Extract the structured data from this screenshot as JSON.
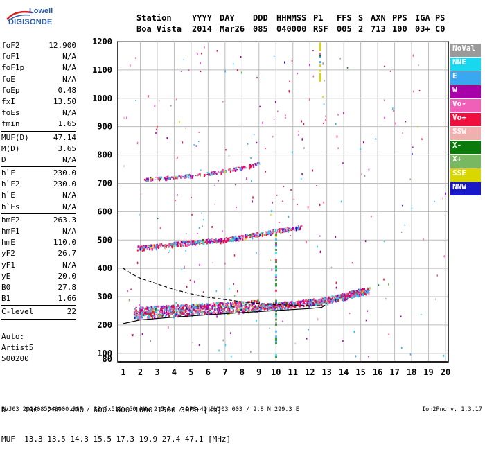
{
  "logo": {
    "org": "Lowell",
    "product": "DIGISONDE"
  },
  "header": {
    "cols": [
      {
        "top": "Station",
        "bottom": "Boa Vista"
      },
      {
        "top": "YYYY",
        "bottom": "2014"
      },
      {
        "top": "DAY",
        "bottom": "Mar26"
      },
      {
        "top": "DDD",
        "bottom": "085"
      },
      {
        "top": "HHMMSS",
        "bottom": "040000"
      },
      {
        "top": "P1",
        "bottom": "RSF"
      },
      {
        "top": "FFS",
        "bottom": "005"
      },
      {
        "top": "S",
        "bottom": "2"
      },
      {
        "top": "AXN",
        "bottom": "713"
      },
      {
        "top": "PPS",
        "bottom": "100"
      },
      {
        "top": "IGA",
        "bottom": "03+"
      },
      {
        "top": "PS",
        "bottom": "C0"
      }
    ]
  },
  "params": [
    {
      "k": "foF2",
      "v": "12.900"
    },
    {
      "k": "foF1",
      "v": "N/A"
    },
    {
      "k": "foF1p",
      "v": "N/A"
    },
    {
      "k": "foE",
      "v": "N/A"
    },
    {
      "k": "foEp",
      "v": "0.48"
    },
    {
      "k": "fxI",
      "v": "13.50"
    },
    {
      "k": "foEs",
      "v": "N/A"
    },
    {
      "k": "fmin",
      "v": "1.65"
    },
    {
      "sep": true
    },
    {
      "k": "MUF(D)",
      "v": "47.14"
    },
    {
      "k": "M(D)",
      "v": "3.65"
    },
    {
      "k": "D",
      "v": "N/A"
    },
    {
      "sep": true
    },
    {
      "k": "h`F",
      "v": "230.0"
    },
    {
      "k": "h`F2",
      "v": "230.0"
    },
    {
      "k": "h`E",
      "v": "N/A"
    },
    {
      "k": "h`Es",
      "v": "N/A"
    },
    {
      "sep": true
    },
    {
      "k": "hmF2",
      "v": "263.3"
    },
    {
      "k": "hmF1",
      "v": "N/A"
    },
    {
      "k": "hmE",
      "v": "110.0"
    },
    {
      "k": "yF2",
      "v": "26.7"
    },
    {
      "k": "yF1",
      "v": "N/A"
    },
    {
      "k": "yE",
      "v": "20.0"
    },
    {
      "k": "B0",
      "v": "27.8"
    },
    {
      "k": "B1",
      "v": "1.66"
    },
    {
      "sep": true
    },
    {
      "k": "C-level",
      "v": "22"
    },
    {
      "sep": true
    }
  ],
  "auto": {
    "line1": "Auto:",
    "line2": "Artist5",
    "line3": "500200"
  },
  "legend": [
    {
      "label": "NoVal",
      "color": "#9a9a9a"
    },
    {
      "label": "NNE",
      "color": "#18d8f0"
    },
    {
      "label": "E",
      "color": "#3aa8f0"
    },
    {
      "label": "W",
      "color": "#a800a8"
    },
    {
      "label": "Vo-",
      "color": "#f060b8"
    },
    {
      "label": "Vo+",
      "color": "#f01040"
    },
    {
      "label": "SSW",
      "color": "#f0b0b0"
    },
    {
      "label": "X-",
      "color": "#0a7a0a"
    },
    {
      "label": "X+",
      "color": "#78b860"
    },
    {
      "label": "SSE",
      "color": "#d8d800"
    },
    {
      "label": "NNW",
      "color": "#1818c8"
    }
  ],
  "bottom": {
    "line1": "D    100  200  400  600  800 1000 1500 3000 [km]",
    "line2": "MUF  13.3 13.5 14.3 15.5 17.3 19.9 27.4 47.1 [MHz]",
    "file_line": "BVJ03_2014085040000.RSF / 384fx512h 50 kHz 2.5 km / DPS-4D BVJ03 003 / 2.8 N 299.3 E",
    "version": "Ion2Png v. 1.3.17"
  },
  "chart_data": {
    "type": "scatter",
    "xlabel": "",
    "ylabel": "",
    "xlim": [
      1,
      20
    ],
    "ylim": [
      80,
      1200
    ],
    "x_ticks": [
      1,
      2,
      3,
      4,
      5,
      6,
      7,
      8,
      9,
      10,
      11,
      12,
      13,
      14,
      15,
      16,
      17,
      18,
      19,
      20
    ],
    "y_ticks": [
      80,
      100,
      200,
      300,
      400,
      500,
      600,
      700,
      800,
      900,
      1000,
      1100,
      1200
    ],
    "grid": true,
    "series": [
      {
        "name": "first-hop trace",
        "x": [
          1.6,
          2,
          3,
          4,
          5,
          6,
          7,
          8,
          9,
          10,
          11,
          12,
          13,
          13.5,
          14,
          14.5,
          15,
          15.5
        ],
        "y": [
          238,
          240,
          242,
          245,
          248,
          252,
          255,
          258,
          262,
          266,
          272,
          278,
          285,
          292,
          300,
          308,
          315,
          320
        ]
      },
      {
        "name": "second-hop trace",
        "x": [
          1.8,
          3,
          4,
          5,
          6,
          7,
          8,
          9,
          10,
          11,
          11.5
        ],
        "y": [
          470,
          478,
          485,
          490,
          495,
          500,
          510,
          520,
          530,
          540,
          545
        ]
      },
      {
        "name": "third-hop trace",
        "x": [
          2.2,
          3,
          4,
          5,
          6,
          7,
          8,
          9
        ],
        "y": [
          712,
          718,
          722,
          728,
          735,
          745,
          755,
          770
        ]
      },
      {
        "name": "virtual height profile",
        "x": [
          1,
          2,
          4,
          6,
          8,
          10,
          12,
          12.7,
          12.9
        ],
        "y": [
          205,
          218,
          228,
          236,
          244,
          251,
          258,
          262,
          270
        ]
      },
      {
        "name": "true height profile",
        "x": [
          1,
          1.5,
          2,
          3,
          4,
          5,
          6,
          7,
          8,
          9,
          10,
          11,
          12,
          12.9
        ],
        "y": [
          400,
          380,
          365,
          345,
          325,
          310,
          298,
          290,
          282,
          276,
          272,
          270,
          268,
          268
        ]
      }
    ]
  }
}
